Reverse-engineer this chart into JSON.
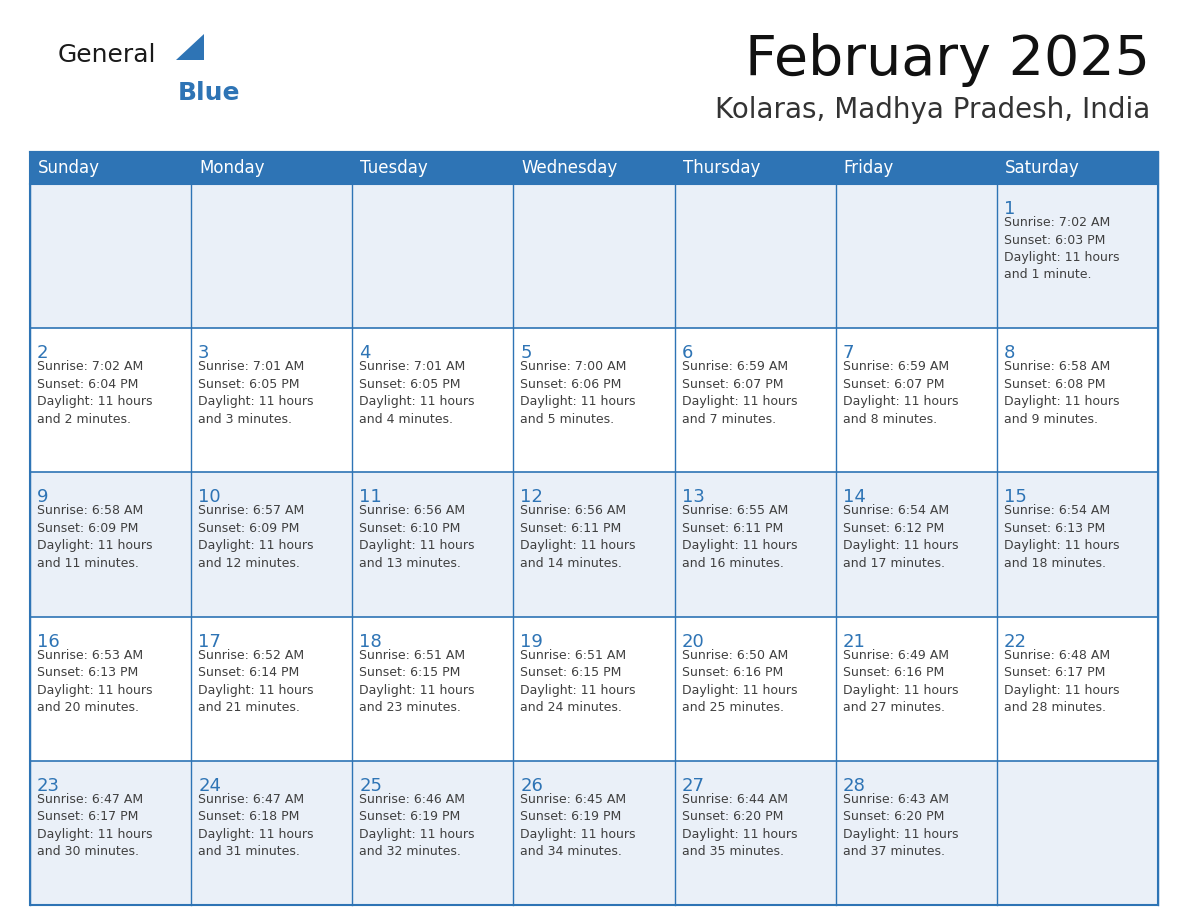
{
  "title": "February 2025",
  "subtitle": "Kolaras, Madhya Pradesh, India",
  "header_bg": "#2E74B5",
  "header_text_color": "#FFFFFF",
  "cell_border_color": "#2E74B5",
  "row1_bg": "#EAF0F8",
  "row_bg": "#FFFFFF",
  "day_number_color": "#2E74B5",
  "info_text_color": "#404040",
  "background_color": "#FFFFFF",
  "days_of_week": [
    "Sunday",
    "Monday",
    "Tuesday",
    "Wednesday",
    "Thursday",
    "Friday",
    "Saturday"
  ],
  "calendar_data": [
    [
      {
        "day": null,
        "info": null
      },
      {
        "day": null,
        "info": null
      },
      {
        "day": null,
        "info": null
      },
      {
        "day": null,
        "info": null
      },
      {
        "day": null,
        "info": null
      },
      {
        "day": null,
        "info": null
      },
      {
        "day": 1,
        "info": "Sunrise: 7:02 AM\nSunset: 6:03 PM\nDaylight: 11 hours\nand 1 minute."
      }
    ],
    [
      {
        "day": 2,
        "info": "Sunrise: 7:02 AM\nSunset: 6:04 PM\nDaylight: 11 hours\nand 2 minutes."
      },
      {
        "day": 3,
        "info": "Sunrise: 7:01 AM\nSunset: 6:05 PM\nDaylight: 11 hours\nand 3 minutes."
      },
      {
        "day": 4,
        "info": "Sunrise: 7:01 AM\nSunset: 6:05 PM\nDaylight: 11 hours\nand 4 minutes."
      },
      {
        "day": 5,
        "info": "Sunrise: 7:00 AM\nSunset: 6:06 PM\nDaylight: 11 hours\nand 5 minutes."
      },
      {
        "day": 6,
        "info": "Sunrise: 6:59 AM\nSunset: 6:07 PM\nDaylight: 11 hours\nand 7 minutes."
      },
      {
        "day": 7,
        "info": "Sunrise: 6:59 AM\nSunset: 6:07 PM\nDaylight: 11 hours\nand 8 minutes."
      },
      {
        "day": 8,
        "info": "Sunrise: 6:58 AM\nSunset: 6:08 PM\nDaylight: 11 hours\nand 9 minutes."
      }
    ],
    [
      {
        "day": 9,
        "info": "Sunrise: 6:58 AM\nSunset: 6:09 PM\nDaylight: 11 hours\nand 11 minutes."
      },
      {
        "day": 10,
        "info": "Sunrise: 6:57 AM\nSunset: 6:09 PM\nDaylight: 11 hours\nand 12 minutes."
      },
      {
        "day": 11,
        "info": "Sunrise: 6:56 AM\nSunset: 6:10 PM\nDaylight: 11 hours\nand 13 minutes."
      },
      {
        "day": 12,
        "info": "Sunrise: 6:56 AM\nSunset: 6:11 PM\nDaylight: 11 hours\nand 14 minutes."
      },
      {
        "day": 13,
        "info": "Sunrise: 6:55 AM\nSunset: 6:11 PM\nDaylight: 11 hours\nand 16 minutes."
      },
      {
        "day": 14,
        "info": "Sunrise: 6:54 AM\nSunset: 6:12 PM\nDaylight: 11 hours\nand 17 minutes."
      },
      {
        "day": 15,
        "info": "Sunrise: 6:54 AM\nSunset: 6:13 PM\nDaylight: 11 hours\nand 18 minutes."
      }
    ],
    [
      {
        "day": 16,
        "info": "Sunrise: 6:53 AM\nSunset: 6:13 PM\nDaylight: 11 hours\nand 20 minutes."
      },
      {
        "day": 17,
        "info": "Sunrise: 6:52 AM\nSunset: 6:14 PM\nDaylight: 11 hours\nand 21 minutes."
      },
      {
        "day": 18,
        "info": "Sunrise: 6:51 AM\nSunset: 6:15 PM\nDaylight: 11 hours\nand 23 minutes."
      },
      {
        "day": 19,
        "info": "Sunrise: 6:51 AM\nSunset: 6:15 PM\nDaylight: 11 hours\nand 24 minutes."
      },
      {
        "day": 20,
        "info": "Sunrise: 6:50 AM\nSunset: 6:16 PM\nDaylight: 11 hours\nand 25 minutes."
      },
      {
        "day": 21,
        "info": "Sunrise: 6:49 AM\nSunset: 6:16 PM\nDaylight: 11 hours\nand 27 minutes."
      },
      {
        "day": 22,
        "info": "Sunrise: 6:48 AM\nSunset: 6:17 PM\nDaylight: 11 hours\nand 28 minutes."
      }
    ],
    [
      {
        "day": 23,
        "info": "Sunrise: 6:47 AM\nSunset: 6:17 PM\nDaylight: 11 hours\nand 30 minutes."
      },
      {
        "day": 24,
        "info": "Sunrise: 6:47 AM\nSunset: 6:18 PM\nDaylight: 11 hours\nand 31 minutes."
      },
      {
        "day": 25,
        "info": "Sunrise: 6:46 AM\nSunset: 6:19 PM\nDaylight: 11 hours\nand 32 minutes."
      },
      {
        "day": 26,
        "info": "Sunrise: 6:45 AM\nSunset: 6:19 PM\nDaylight: 11 hours\nand 34 minutes."
      },
      {
        "day": 27,
        "info": "Sunrise: 6:44 AM\nSunset: 6:20 PM\nDaylight: 11 hours\nand 35 minutes."
      },
      {
        "day": 28,
        "info": "Sunrise: 6:43 AM\nSunset: 6:20 PM\nDaylight: 11 hours\nand 37 minutes."
      },
      {
        "day": null,
        "info": null
      }
    ]
  ],
  "logo_text_general": "General",
  "logo_text_blue": "Blue",
  "logo_color_general": "#1a1a1a",
  "logo_color_blue": "#2E74B5",
  "logo_triangle_color": "#2E74B5",
  "title_fontsize": 40,
  "subtitle_fontsize": 20,
  "header_fontsize": 12,
  "day_num_fontsize": 13,
  "info_fontsize": 9
}
